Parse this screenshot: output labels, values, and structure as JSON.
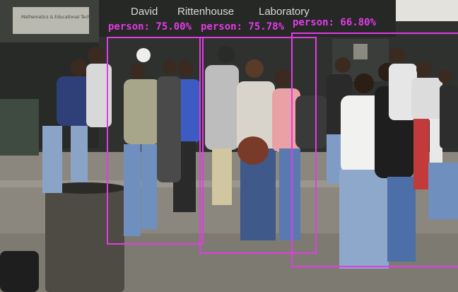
{
  "image": {
    "building_sign": [
      "David",
      "Rittenhouse",
      "Laboratory"
    ],
    "door_notice": "Mathematics & Educational Technology Services"
  },
  "detections": [
    {
      "label": "person: 75.00%"
    },
    {
      "label": "person: 75.78%"
    },
    {
      "label": "person: 66.80%"
    }
  ],
  "colors": {
    "box": "#e23be6"
  }
}
